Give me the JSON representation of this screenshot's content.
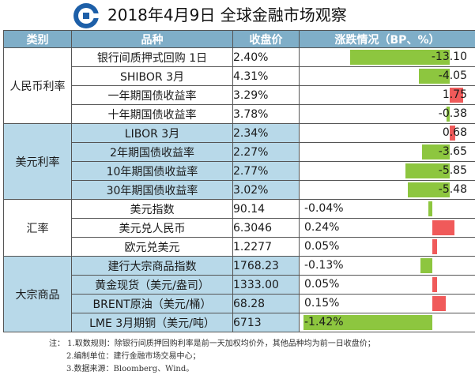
{
  "title": "2018年4月9日  全球金融市场观察",
  "header": {
    "category": "类别",
    "item": "品种",
    "close": "收盘价",
    "change": "涨跌情况（BP、%）"
  },
  "colors": {
    "header_bg": "#7faec8",
    "row_blue": "#b8d9e9",
    "neg_bar": "#8dc63f",
    "pos_bar": "#f05a5a"
  },
  "groups": [
    {
      "category": "人民币利率",
      "style": "white",
      "rows": [
        {
          "name": "银行间质押式回购 1日",
          "close": "2.40%",
          "change": "-13.10",
          "value": -13.1
        },
        {
          "name": "SHIBOR 3月",
          "close": "4.31%",
          "change": "-4.05",
          "value": -4.05
        },
        {
          "name": "一年期国债收益率",
          "close": "3.29%",
          "change": "1.75",
          "value": 1.75
        },
        {
          "name": "十年期国债收益率",
          "close": "3.78%",
          "change": "-0.38",
          "value": -0.38
        }
      ]
    },
    {
      "category": "美元利率",
      "style": "blue",
      "rows": [
        {
          "name": "LIBOR 3月",
          "close": "2.34%",
          "change": "0.68",
          "value": 0.68
        },
        {
          "name": "2年期国债收益率",
          "close": "2.27%",
          "change": "-3.65",
          "value": -3.65
        },
        {
          "name": "10年期国债收益率",
          "close": "2.77%",
          "change": "-5.85",
          "value": -5.85
        },
        {
          "name": "30年期国债收益率",
          "close": "3.02%",
          "change": "-5.48",
          "value": -5.48
        }
      ]
    },
    {
      "category": "汇率",
      "style": "white",
      "rows": [
        {
          "name": "美元指数",
          "close": "90.14",
          "change": "-0.04%",
          "value": -0.04
        },
        {
          "name": "美元兑人民币",
          "close": "6.3046",
          "change": "0.24%",
          "value": 0.24
        },
        {
          "name": "欧元兑美元",
          "close": "1.2277",
          "change": "0.05%",
          "value": 0.05
        }
      ]
    },
    {
      "category": "大宗商品",
      "style": "blue",
      "rows": [
        {
          "name": "建行大宗商品指数",
          "close": "1768.23",
          "change": "-0.13%",
          "value": -0.13
        },
        {
          "name": "黄金现货（美元/盎司）",
          "close": "1333.00",
          "change": "0.05%",
          "value": 0.05
        },
        {
          "name": "BRENT原油（美元/桶）",
          "close": "68.28",
          "change": "0.15%",
          "value": 0.15
        },
        {
          "name": "LME 3月期铜（美元/吨）",
          "close": "6713",
          "change": "-1.42%",
          "value": -1.42
        }
      ]
    }
  ],
  "notes": [
    "注：  1.取数规则：除银行间质押回购利率是前一天加权均价外，其他品种均为前一日收盘价；",
    "2.编制单位：建行金融市场交易中心；",
    "3.数据来源：Bloomberg、Wind。"
  ]
}
